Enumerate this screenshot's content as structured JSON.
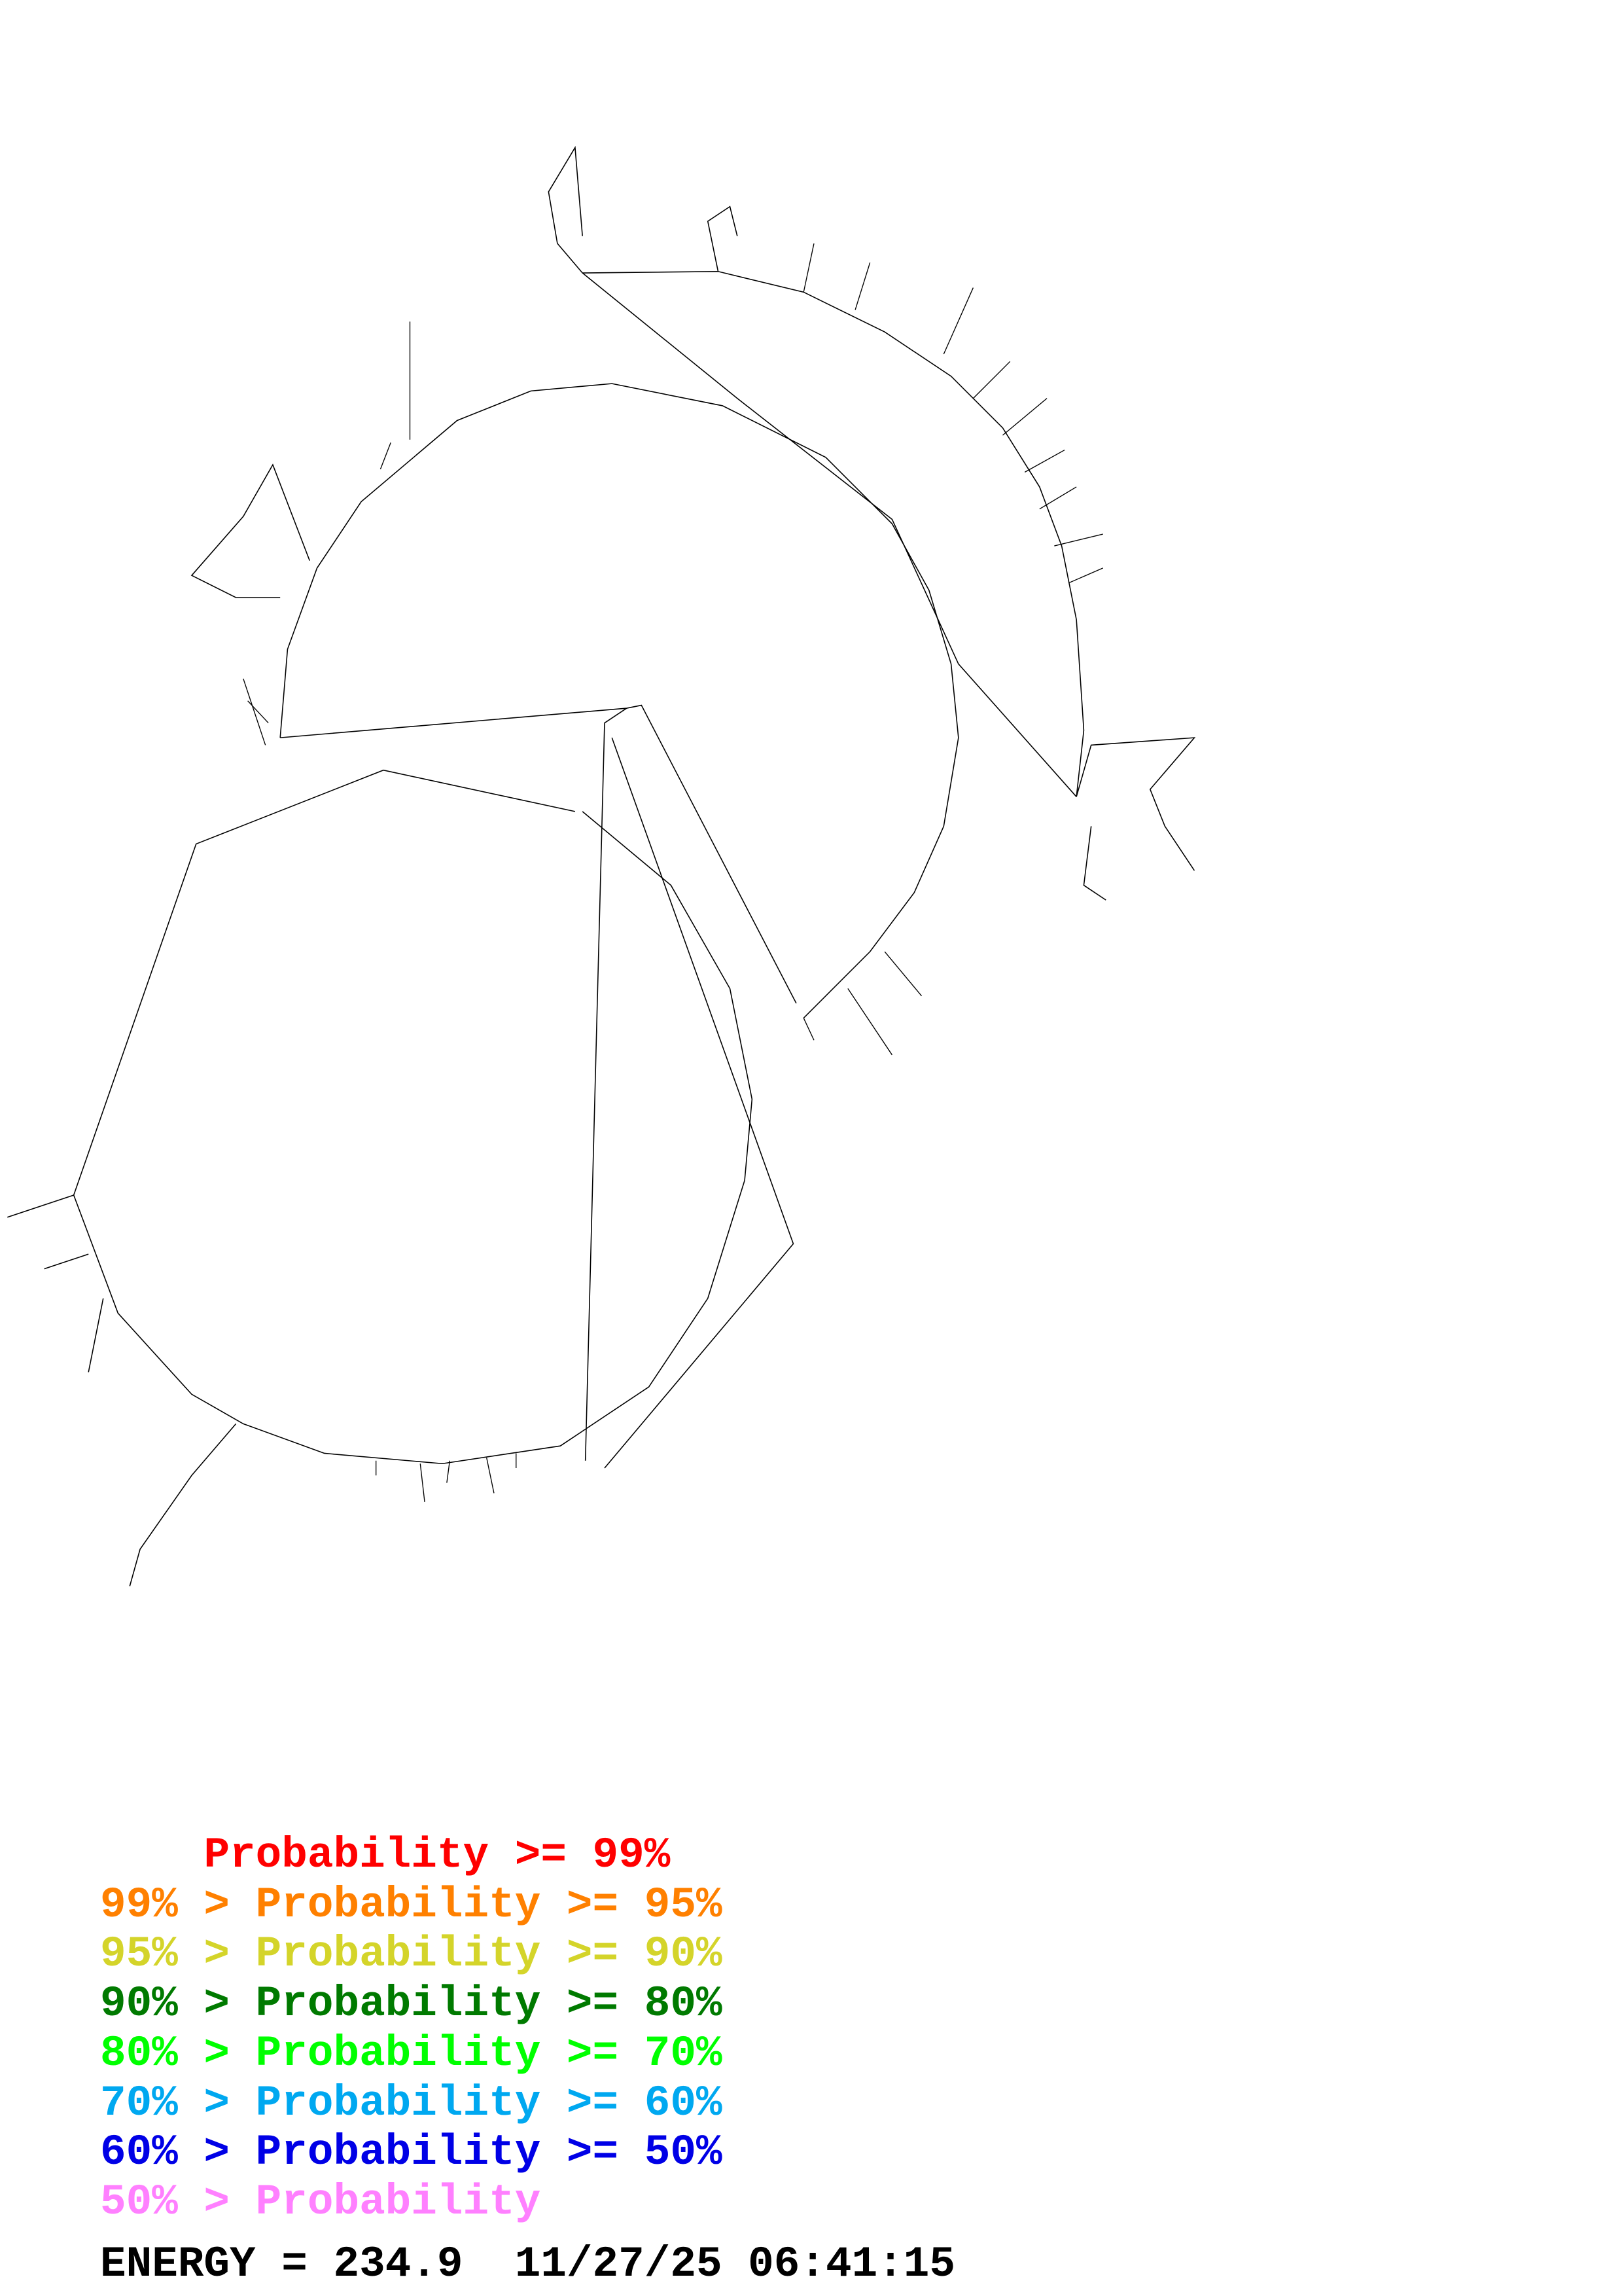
{
  "legend": {
    "rows": [
      {
        "prefix": "    ",
        "label": "Probability",
        "suffix": " >= 99%",
        "color": "#ff0000"
      },
      {
        "prefix": "99% > ",
        "label": "Probability",
        "suffix": " >= 95%",
        "color": "#ff8000"
      },
      {
        "prefix": "95% > ",
        "label": "Probability",
        "suffix": " >= 90%",
        "color": "#d4d42a"
      },
      {
        "prefix": "90% > ",
        "label": "Probability",
        "suffix": " >= 80%",
        "color": "#007a00"
      },
      {
        "prefix": "80% > ",
        "label": "Probability",
        "suffix": " >= 70%",
        "color": "#00ff00"
      },
      {
        "prefix": "70% > ",
        "label": "Probability",
        "suffix": " >= 60%",
        "color": "#00a8f0"
      },
      {
        "prefix": "60% > ",
        "label": "Probability",
        "suffix": " >= 50%",
        "color": "#0000e6"
      },
      {
        "prefix": "50% > ",
        "label": "Probability",
        "suffix": "",
        "color": "#ff80ff"
      }
    ]
  },
  "footer": {
    "energy": "ENERGY = 234.9  11/27/25 06:41:15"
  },
  "structure": {
    "backbone_color": "#000000"
  }
}
